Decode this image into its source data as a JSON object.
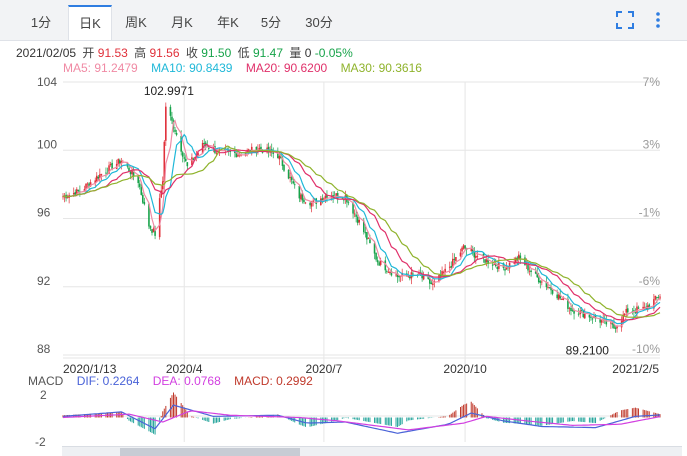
{
  "tabs": [
    {
      "label": "1分",
      "active": false
    },
    {
      "label": "日K",
      "active": true
    },
    {
      "label": "周K",
      "active": false
    },
    {
      "label": "月K",
      "active": false
    },
    {
      "label": "年K",
      "active": false
    },
    {
      "label": "5分",
      "active": false
    },
    {
      "label": "30分",
      "active": false
    }
  ],
  "toolbar": {
    "fullscreen_icon": "fullscreen-icon",
    "more_icon": "vertical-dots-icon"
  },
  "info": {
    "date": "2021/02/05",
    "open_label": "开",
    "open": "91.53",
    "high_label": "高",
    "high": "91.56",
    "close_label": "收",
    "close": "91.50",
    "low_label": "低",
    "low": "91.47",
    "volume_label": "量",
    "volume": "0",
    "change": "-0.05%"
  },
  "ma_legend": [
    {
      "label": "MA5: 91.2479",
      "color": "#f08aa4"
    },
    {
      "label": "MA10: 90.8439",
      "color": "#1fb8d8"
    },
    {
      "label": "MA20: 90.6200",
      "color": "#e0306a"
    },
    {
      "label": "MA30: 90.3616",
      "color": "#8fb32c"
    }
  ],
  "macd_legend": {
    "title": "MACD",
    "dif": {
      "label": "DIF: 0.2264",
      "color": "#4a63d8"
    },
    "dea": {
      "label": "DEA: 0.0768",
      "color": "#d23fe0"
    },
    "macd": {
      "label": "MACD: 0.2992",
      "color": "#c0392b"
    }
  },
  "colors": {
    "up": "#e0303a",
    "down": "#17a34a",
    "grid": "#e6e6e6",
    "axis_text": "#555555",
    "pct_text": "#9a9a9a"
  },
  "chart_data": {
    "type": "candlestick",
    "instrument_note": "Daily K-line",
    "y_left_ticks": [
      104,
      100,
      96,
      92,
      88
    ],
    "y_right_ticks": [
      "7%",
      "3%",
      "-1%",
      "-6%",
      "-10%"
    ],
    "ylim": [
      88,
      104
    ],
    "x_ticks": [
      "2020/1/13",
      "2020/4",
      "2020/7",
      "2020/10",
      "2021/2/5"
    ],
    "x_range": [
      "2020-01-13",
      "2021-02-05"
    ],
    "annotations": [
      {
        "label": "102.9971",
        "type": "max",
        "date": "2020-03-20",
        "value": 102.9971
      },
      {
        "label": "89.2100",
        "type": "min",
        "date": "2021-01-06",
        "value": 89.21
      }
    ],
    "close_path": [
      {
        "date": "2020-01-13",
        "value": 97.3
      },
      {
        "date": "2020-01-24",
        "value": 97.6
      },
      {
        "date": "2020-02-05",
        "value": 98.5
      },
      {
        "date": "2020-02-20",
        "value": 99.4
      },
      {
        "date": "2020-03-02",
        "value": 98.2
      },
      {
        "date": "2020-03-09",
        "value": 95.6
      },
      {
        "date": "2020-03-13",
        "value": 95.1
      },
      {
        "date": "2020-03-18",
        "value": 98.3
      },
      {
        "date": "2020-03-20",
        "value": 102.6
      },
      {
        "date": "2020-03-26",
        "value": 101.2
      },
      {
        "date": "2020-04-03",
        "value": 99.0
      },
      {
        "date": "2020-04-14",
        "value": 100.4
      },
      {
        "date": "2020-04-23",
        "value": 99.9
      },
      {
        "date": "2020-05-06",
        "value": 99.8
      },
      {
        "date": "2020-05-20",
        "value": 100.1
      },
      {
        "date": "2020-06-01",
        "value": 99.7
      },
      {
        "date": "2020-06-15",
        "value": 97.3
      },
      {
        "date": "2020-06-24",
        "value": 96.9
      },
      {
        "date": "2020-07-03",
        "value": 97.4
      },
      {
        "date": "2020-07-15",
        "value": 97.3
      },
      {
        "date": "2020-07-24",
        "value": 95.8
      },
      {
        "date": "2020-08-05",
        "value": 93.5
      },
      {
        "date": "2020-08-18",
        "value": 92.6
      },
      {
        "date": "2020-08-31",
        "value": 92.7
      },
      {
        "date": "2020-09-10",
        "value": 92.1
      },
      {
        "date": "2020-09-22",
        "value": 93.3
      },
      {
        "date": "2020-09-30",
        "value": 94.3
      },
      {
        "date": "2020-10-13",
        "value": 93.6
      },
      {
        "date": "2020-10-26",
        "value": 93.1
      },
      {
        "date": "2020-11-05",
        "value": 93.7
      },
      {
        "date": "2020-11-16",
        "value": 92.6
      },
      {
        "date": "2020-11-27",
        "value": 91.8
      },
      {
        "date": "2020-12-09",
        "value": 90.7
      },
      {
        "date": "2020-12-21",
        "value": 90.3
      },
      {
        "date": "2020-12-31",
        "value": 89.9
      },
      {
        "date": "2021-01-06",
        "value": 89.6
      },
      {
        "date": "2021-01-15",
        "value": 90.6
      },
      {
        "date": "2021-01-26",
        "value": 90.7
      },
      {
        "date": "2021-02-05",
        "value": 91.5
      }
    ],
    "macd": {
      "y_ticks": [
        2,
        -2
      ],
      "ylim": [
        -2.6,
        2.6
      ],
      "dif_path": [
        {
          "date": "2020-01-13",
          "value": 0.1
        },
        {
          "date": "2020-02-20",
          "value": 0.5
        },
        {
          "date": "2020-03-13",
          "value": -1.0
        },
        {
          "date": "2020-03-25",
          "value": 1.1
        },
        {
          "date": "2020-04-20",
          "value": 0.1
        },
        {
          "date": "2020-06-01",
          "value": 0.2
        },
        {
          "date": "2020-06-20",
          "value": -0.5
        },
        {
          "date": "2020-07-15",
          "value": -0.4
        },
        {
          "date": "2020-08-18",
          "value": -1.4
        },
        {
          "date": "2020-09-20",
          "value": -0.6
        },
        {
          "date": "2020-10-05",
          "value": 0.4
        },
        {
          "date": "2020-10-26",
          "value": -0.3
        },
        {
          "date": "2020-11-20",
          "value": -0.8
        },
        {
          "date": "2020-12-25",
          "value": -0.9
        },
        {
          "date": "2021-01-20",
          "value": 0.1
        },
        {
          "date": "2021-02-05",
          "value": 0.23
        }
      ],
      "dea_path": [
        {
          "date": "2020-01-13",
          "value": 0.0
        },
        {
          "date": "2020-02-25",
          "value": 0.3
        },
        {
          "date": "2020-03-18",
          "value": -0.4
        },
        {
          "date": "2020-04-05",
          "value": 0.6
        },
        {
          "date": "2020-05-01",
          "value": 0.2
        },
        {
          "date": "2020-06-15",
          "value": 0.0
        },
        {
          "date": "2020-07-10",
          "value": -0.3
        },
        {
          "date": "2020-08-25",
          "value": -1.1
        },
        {
          "date": "2020-09-30",
          "value": -0.5
        },
        {
          "date": "2020-10-15",
          "value": 0.1
        },
        {
          "date": "2020-11-10",
          "value": -0.3
        },
        {
          "date": "2020-12-10",
          "value": -0.7
        },
        {
          "date": "2021-01-10",
          "value": -0.6
        },
        {
          "date": "2021-02-05",
          "value": 0.08
        }
      ]
    }
  }
}
